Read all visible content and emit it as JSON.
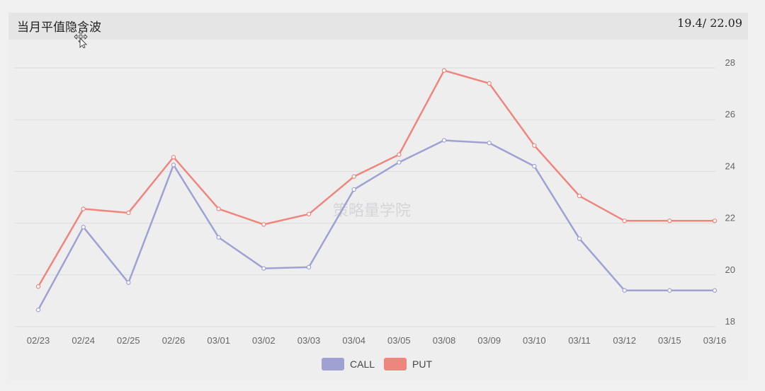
{
  "header": {
    "title": "当月平值隐含波",
    "values": "19.4/ 22.09"
  },
  "watermark": "策略量学院",
  "colors": {
    "call": "#9fa1d3",
    "put": "#ee867e",
    "grid": "#dddcdd"
  },
  "chart_data": {
    "type": "line",
    "title": "当月平值隐含波",
    "categories": [
      "02/23",
      "02/24",
      "02/25",
      "02/26",
      "03/01",
      "03/02",
      "03/03",
      "03/04",
      "03/05",
      "03/08",
      "03/09",
      "03/10",
      "03/11",
      "03/12",
      "03/15",
      "03/16"
    ],
    "series": [
      {
        "name": "CALL",
        "values": [
          18.65,
          21.85,
          19.7,
          24.25,
          21.45,
          20.25,
          20.3,
          23.3,
          24.35,
          25.2,
          25.1,
          24.2,
          21.4,
          19.4,
          19.4,
          19.4
        ]
      },
      {
        "name": "PUT",
        "values": [
          19.55,
          22.55,
          22.4,
          24.55,
          22.55,
          21.95,
          22.35,
          23.8,
          24.65,
          27.9,
          27.4,
          25.0,
          23.05,
          22.09,
          22.09,
          22.09
        ]
      }
    ],
    "yticks": [
      18,
      20,
      22,
      24,
      26,
      28
    ],
    "ylim": [
      18,
      28
    ],
    "y_axis_side": "right",
    "grid": true,
    "legend": "bottom-center"
  }
}
